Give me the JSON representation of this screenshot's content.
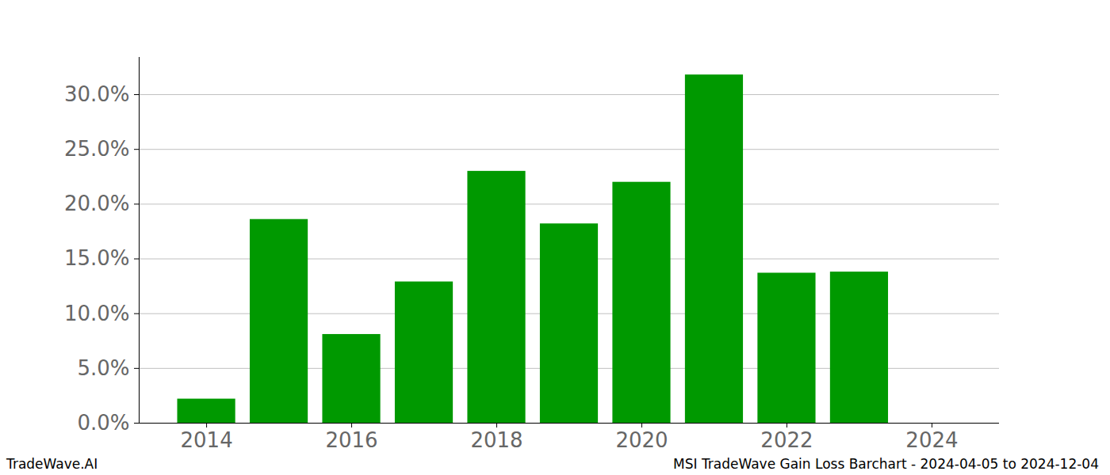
{
  "chart_data": {
    "type": "bar",
    "title": "MSI TradeWave Gain Loss Barchart - 2024-04-05 to 2024-12-04",
    "credit": "TradeWave.AI",
    "x": [
      2014,
      2015,
      2016,
      2017,
      2018,
      2019,
      2020,
      2021,
      2022,
      2023
    ],
    "values": [
      2.2,
      18.6,
      8.1,
      12.9,
      23.0,
      18.2,
      22.0,
      31.8,
      13.7,
      13.8
    ],
    "color": "#009900",
    "xlim": [
      2013.07,
      2024.93
    ],
    "xticks": [
      2014,
      2016,
      2018,
      2020,
      2022,
      2024
    ],
    "ylim": [
      0,
      33.4
    ],
    "yticks": [
      {
        "value": 0,
        "label": "0.0%"
      },
      {
        "value": 5,
        "label": "5.0%"
      },
      {
        "value": 10,
        "label": "10.0%"
      },
      {
        "value": 15,
        "label": "15.0%"
      },
      {
        "value": 20,
        "label": "20.0%"
      },
      {
        "value": 25,
        "label": "25.0%"
      },
      {
        "value": 30,
        "label": "30.0%"
      }
    ],
    "grid": true
  }
}
